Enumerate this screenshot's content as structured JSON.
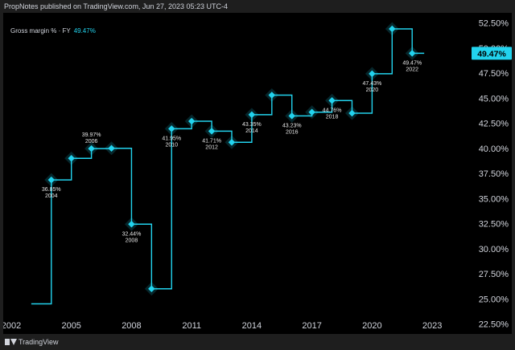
{
  "header": {
    "published_text": "PropNotes published on TradingView.com, Jun 27, 2023 05:23 UTC-4"
  },
  "legend": {
    "label": "Gross margin % · FY",
    "value": "49.47%"
  },
  "footer": {
    "brand": "TradingView"
  },
  "colors": {
    "line": "#22d3ee",
    "background": "#000000",
    "text": "#d1d4dc",
    "badge": "#22d3ee"
  },
  "chart_data": {
    "type": "line",
    "step": true,
    "series": [
      {
        "name": "Gross margin % · FY",
        "x": [
          2004,
          2005,
          2006,
          2007,
          2008,
          2009,
          2010,
          2011,
          2012,
          2013,
          2014,
          2015,
          2016,
          2017,
          2018,
          2019,
          2020,
          2021,
          2022
        ],
        "values": [
          36.85,
          39.0,
          39.97,
          40.0,
          32.44,
          26.0,
          41.95,
          42.7,
          41.71,
          40.6,
          43.35,
          45.3,
          43.23,
          43.6,
          44.76,
          43.5,
          47.43,
          51.9,
          49.47
        ]
      }
    ],
    "start": {
      "x": 2003,
      "value": 24.5
    },
    "last": {
      "value": 49.47,
      "label": "49.47%"
    },
    "x_ticks": [
      "2002",
      "2005",
      "2008",
      "2011",
      "2014",
      "2017",
      "2020",
      "2023"
    ],
    "y_ticks": [
      "22.50%",
      "25.00%",
      "27.50%",
      "30.00%",
      "32.50%",
      "35.00%",
      "37.50%",
      "40.00%",
      "42.50%",
      "45.00%",
      "47.50%",
      "50.00%",
      "52.50%"
    ],
    "ylim": [
      21.5,
      53.5
    ],
    "xlim": [
      2001.6,
      2024.4
    ],
    "annotations": [
      {
        "x": 2004,
        "value": "36.85%",
        "year": "2004",
        "position": "below"
      },
      {
        "x": 2006,
        "value": "39.97%",
        "year": "2006",
        "position": "above"
      },
      {
        "x": 2008,
        "value": "32.44%",
        "year": "2008",
        "position": "below"
      },
      {
        "x": 2010,
        "value": "41.95%",
        "year": "2010",
        "position": "below"
      },
      {
        "x": 2012,
        "value": "41.71%",
        "year": "2012",
        "position": "below"
      },
      {
        "x": 2014,
        "value": "43.35%",
        "year": "2014",
        "position": "below"
      },
      {
        "x": 2016,
        "value": "43.23%",
        "year": "2016",
        "position": "below"
      },
      {
        "x": 2018,
        "value": "44.76%",
        "year": "2018",
        "position": "below"
      },
      {
        "x": 2020,
        "value": "47.43%",
        "year": "2020",
        "position": "below"
      },
      {
        "x": 2022,
        "value": "49.47%",
        "year": "2022",
        "position": "below"
      }
    ]
  }
}
